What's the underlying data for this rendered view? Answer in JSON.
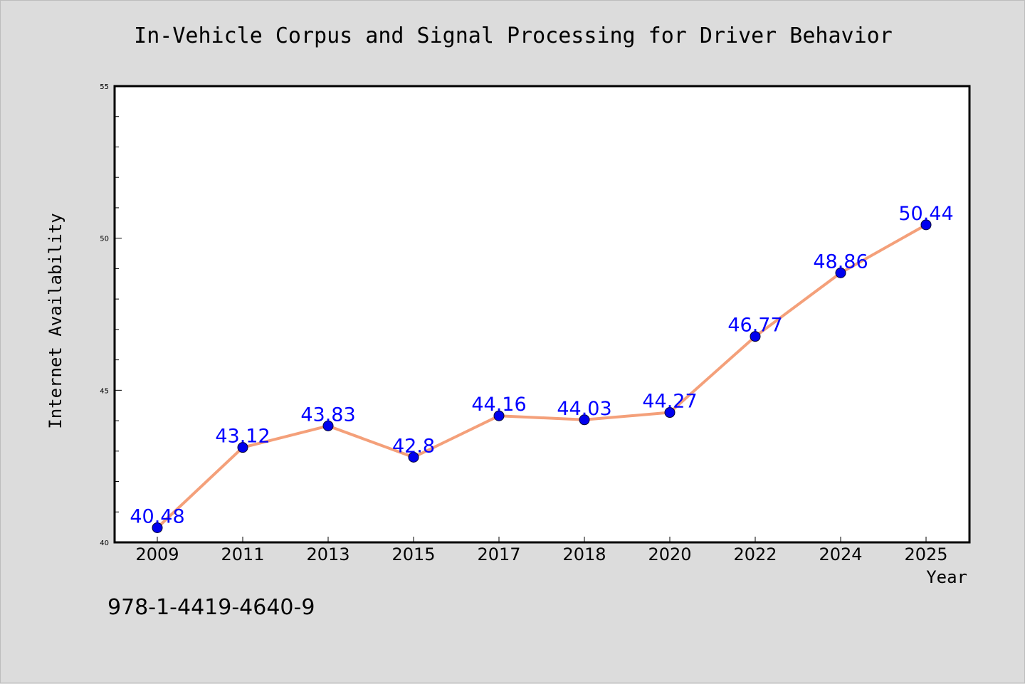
{
  "chart_data": {
    "type": "line",
    "title": "In-Vehicle Corpus and Signal Processing for Driver Behavior",
    "xlabel": "Year",
    "ylabel": "Internet Availability",
    "categories": [
      "2009",
      "2011",
      "2013",
      "2015",
      "2017",
      "2018",
      "2020",
      "2022",
      "2024",
      "2025"
    ],
    "values": [
      40.48,
      43.12,
      43.83,
      42.8,
      44.16,
      44.03,
      44.27,
      46.77,
      48.86,
      50.44
    ],
    "data_labels": [
      "40.48",
      "43.12",
      "43.83",
      "42.8",
      "44.16",
      "44.03",
      "44.27",
      "46.77",
      "48.86",
      "50.44"
    ],
    "ylim": [
      40,
      55
    ],
    "yticks": [
      "40",
      "45",
      "50",
      "55"
    ],
    "grid": false,
    "line_color": "#f4a07a",
    "marker_color": "#0000ee",
    "label_color": "#0000ff"
  },
  "footer": {
    "isbn": "978-1-4419-4640-9"
  }
}
